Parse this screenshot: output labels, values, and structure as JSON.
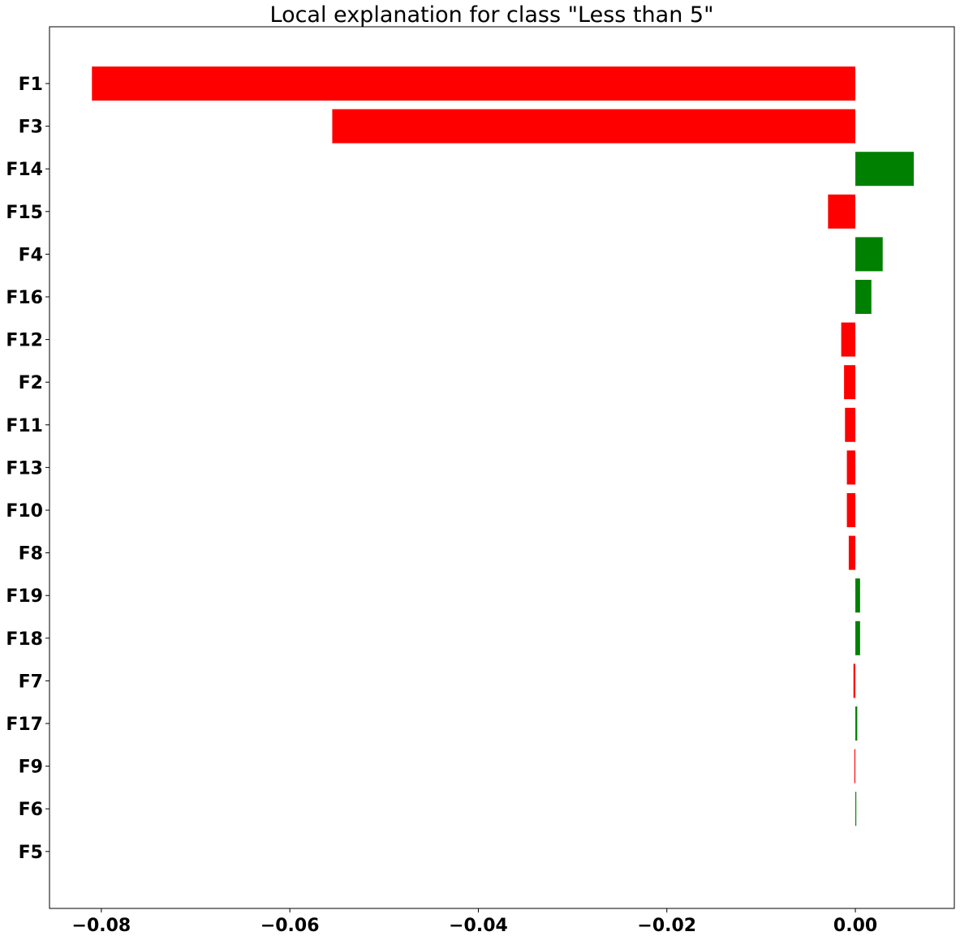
{
  "chart_data": {
    "type": "bar",
    "orientation": "horizontal",
    "title": "Local explanation for class \"Less than 5\"",
    "xlabel": "",
    "ylabel": "",
    "xlim": [
      -0.0855,
      0.0105
    ],
    "grid": false,
    "legend": "none",
    "categories": [
      "F1",
      "F3",
      "F14",
      "F15",
      "F4",
      "F16",
      "F12",
      "F2",
      "F11",
      "F13",
      "F10",
      "F8",
      "F19",
      "F18",
      "F7",
      "F17",
      "F9",
      "F6",
      "F5"
    ],
    "values": [
      -0.081,
      -0.0555,
      0.0062,
      -0.0029,
      0.0029,
      0.0017,
      -0.0015,
      -0.0012,
      -0.0011,
      -0.0009,
      -0.0009,
      -0.0007,
      0.0005,
      0.0005,
      -0.0002,
      0.0002,
      -0.0001,
      0.0001,
      0.0
    ],
    "xticks": [
      -0.08,
      -0.06,
      -0.04,
      -0.02,
      0.0
    ],
    "xtick_labels": [
      "−0.08",
      "−0.06",
      "−0.04",
      "−0.02",
      "0.00"
    ],
    "colors": {
      "positive": "#008000",
      "negative": "#ff0000",
      "axis": "#000000",
      "background": "#ffffff"
    }
  }
}
